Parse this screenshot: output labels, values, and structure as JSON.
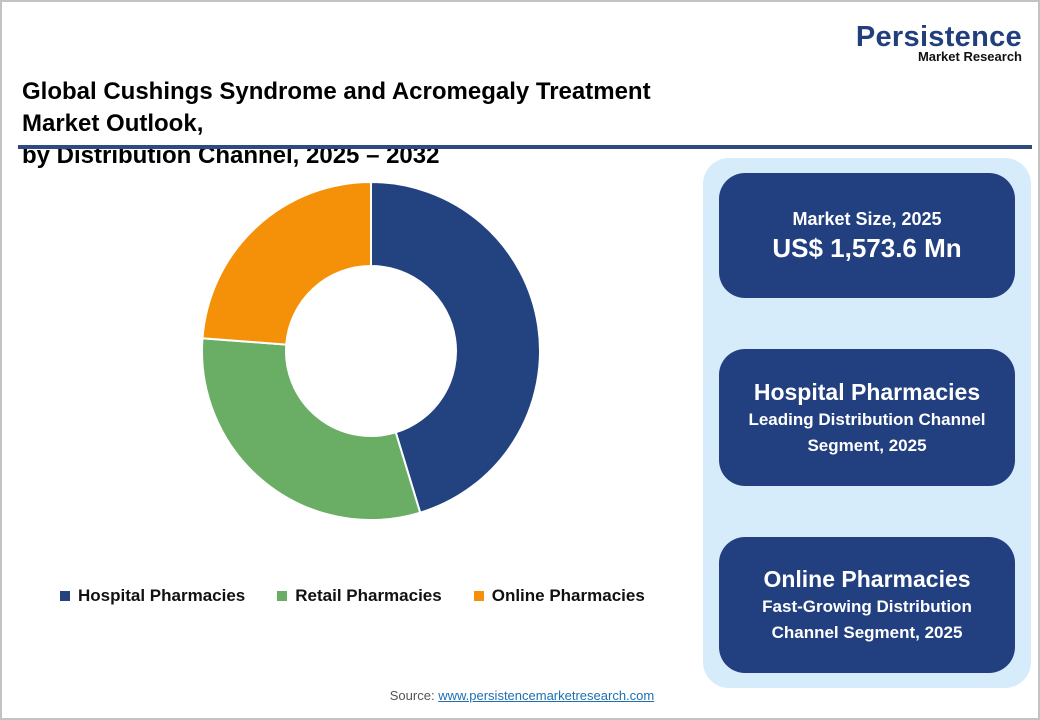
{
  "logo": {
    "main": "Persistence",
    "sub": "Market Research"
  },
  "title": {
    "line1": "Global Cushings Syndrome and Acromegaly Treatment Market Outlook,",
    "line2": "by Distribution Channel, 2025 – 2032"
  },
  "colors": {
    "hospital": "#22437f",
    "retail": "#6aae65",
    "online": "#f59108",
    "card_bg": "#223f7f",
    "panel_bg": "#d7ecfb",
    "rule": "#2f4a7e"
  },
  "legend": [
    {
      "label": "Hospital Pharmacies",
      "color": "#22437f"
    },
    {
      "label": "Retail Pharmacies",
      "color": "#6aae65"
    },
    {
      "label": "Online Pharmacies",
      "color": "#f59108"
    }
  ],
  "cards": {
    "market_size": {
      "label": "Market Size, 2025",
      "value": "US$ 1,573.6 Mn"
    },
    "leading": {
      "head": "Hospital Pharmacies",
      "sub1": "Leading Distribution Channel",
      "sub2": "Segment, 2025"
    },
    "fastest": {
      "head": "Online Pharmacies",
      "sub1": "Fast-Growing Distribution",
      "sub2": "Channel Segment, 2025"
    }
  },
  "source": {
    "label": "Source:",
    "link": "www.persistencemarketresearch.com"
  },
  "chart_data": {
    "type": "pie",
    "variant": "donut",
    "title": "Global Cushings Syndrome and Acromegaly Treatment Market Outlook, by Distribution Channel, 2025 – 2032",
    "categories": [
      "Hospital Pharmacies",
      "Retail Pharmacies",
      "Online Pharmacies"
    ],
    "values": [
      45.3,
      30.9,
      23.8
    ],
    "unit": "% share (estimated from slice angles, no data labels shown)",
    "colors": [
      "#22437f",
      "#6aae65",
      "#f59108"
    ],
    "start_angle_deg": 0,
    "direction": "clockwise",
    "legend_position": "bottom",
    "annotations": [
      "Market Size, 2025: US$ 1,573.6 Mn",
      "Hospital Pharmacies: Leading Distribution Channel Segment, 2025",
      "Online Pharmacies: Fast-Growing Distribution Channel Segment, 2025"
    ]
  }
}
